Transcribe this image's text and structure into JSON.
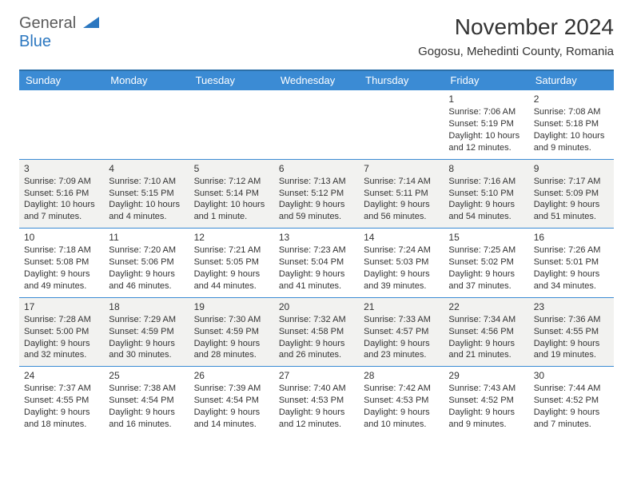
{
  "logo": {
    "part1": "General",
    "part2": "Blue",
    "tri_color": "#2b77c0"
  },
  "title": "November 2024",
  "location": "Gogosu, Mehedinti County, Romania",
  "colors": {
    "header_bg": "#3b8bd4",
    "header_border": "#2b6fa8",
    "header_text": "#ffffff",
    "row_border": "#3b8bd4",
    "shade_bg": "#f2f2f0",
    "body_bg": "#ffffff",
    "text": "#333333"
  },
  "columns": [
    "Sunday",
    "Monday",
    "Tuesday",
    "Wednesday",
    "Thursday",
    "Friday",
    "Saturday"
  ],
  "weeks": [
    {
      "shaded": false,
      "days": [
        null,
        null,
        null,
        null,
        null,
        {
          "n": "1",
          "sr": "7:06 AM",
          "ss": "5:19 PM",
          "dl": "10 hours and 12 minutes."
        },
        {
          "n": "2",
          "sr": "7:08 AM",
          "ss": "5:18 PM",
          "dl": "10 hours and 9 minutes."
        }
      ]
    },
    {
      "shaded": true,
      "days": [
        {
          "n": "3",
          "sr": "7:09 AM",
          "ss": "5:16 PM",
          "dl": "10 hours and 7 minutes."
        },
        {
          "n": "4",
          "sr": "7:10 AM",
          "ss": "5:15 PM",
          "dl": "10 hours and 4 minutes."
        },
        {
          "n": "5",
          "sr": "7:12 AM",
          "ss": "5:14 PM",
          "dl": "10 hours and 1 minute."
        },
        {
          "n": "6",
          "sr": "7:13 AM",
          "ss": "5:12 PM",
          "dl": "9 hours and 59 minutes."
        },
        {
          "n": "7",
          "sr": "7:14 AM",
          "ss": "5:11 PM",
          "dl": "9 hours and 56 minutes."
        },
        {
          "n": "8",
          "sr": "7:16 AM",
          "ss": "5:10 PM",
          "dl": "9 hours and 54 minutes."
        },
        {
          "n": "9",
          "sr": "7:17 AM",
          "ss": "5:09 PM",
          "dl": "9 hours and 51 minutes."
        }
      ]
    },
    {
      "shaded": false,
      "days": [
        {
          "n": "10",
          "sr": "7:18 AM",
          "ss": "5:08 PM",
          "dl": "9 hours and 49 minutes."
        },
        {
          "n": "11",
          "sr": "7:20 AM",
          "ss": "5:06 PM",
          "dl": "9 hours and 46 minutes."
        },
        {
          "n": "12",
          "sr": "7:21 AM",
          "ss": "5:05 PM",
          "dl": "9 hours and 44 minutes."
        },
        {
          "n": "13",
          "sr": "7:23 AM",
          "ss": "5:04 PM",
          "dl": "9 hours and 41 minutes."
        },
        {
          "n": "14",
          "sr": "7:24 AM",
          "ss": "5:03 PM",
          "dl": "9 hours and 39 minutes."
        },
        {
          "n": "15",
          "sr": "7:25 AM",
          "ss": "5:02 PM",
          "dl": "9 hours and 37 minutes."
        },
        {
          "n": "16",
          "sr": "7:26 AM",
          "ss": "5:01 PM",
          "dl": "9 hours and 34 minutes."
        }
      ]
    },
    {
      "shaded": true,
      "days": [
        {
          "n": "17",
          "sr": "7:28 AM",
          "ss": "5:00 PM",
          "dl": "9 hours and 32 minutes."
        },
        {
          "n": "18",
          "sr": "7:29 AM",
          "ss": "4:59 PM",
          "dl": "9 hours and 30 minutes."
        },
        {
          "n": "19",
          "sr": "7:30 AM",
          "ss": "4:59 PM",
          "dl": "9 hours and 28 minutes."
        },
        {
          "n": "20",
          "sr": "7:32 AM",
          "ss": "4:58 PM",
          "dl": "9 hours and 26 minutes."
        },
        {
          "n": "21",
          "sr": "7:33 AM",
          "ss": "4:57 PM",
          "dl": "9 hours and 23 minutes."
        },
        {
          "n": "22",
          "sr": "7:34 AM",
          "ss": "4:56 PM",
          "dl": "9 hours and 21 minutes."
        },
        {
          "n": "23",
          "sr": "7:36 AM",
          "ss": "4:55 PM",
          "dl": "9 hours and 19 minutes."
        }
      ]
    },
    {
      "shaded": false,
      "days": [
        {
          "n": "24",
          "sr": "7:37 AM",
          "ss": "4:55 PM",
          "dl": "9 hours and 18 minutes."
        },
        {
          "n": "25",
          "sr": "7:38 AM",
          "ss": "4:54 PM",
          "dl": "9 hours and 16 minutes."
        },
        {
          "n": "26",
          "sr": "7:39 AM",
          "ss": "4:54 PM",
          "dl": "9 hours and 14 minutes."
        },
        {
          "n": "27",
          "sr": "7:40 AM",
          "ss": "4:53 PM",
          "dl": "9 hours and 12 minutes."
        },
        {
          "n": "28",
          "sr": "7:42 AM",
          "ss": "4:53 PM",
          "dl": "9 hours and 10 minutes."
        },
        {
          "n": "29",
          "sr": "7:43 AM",
          "ss": "4:52 PM",
          "dl": "9 hours and 9 minutes."
        },
        {
          "n": "30",
          "sr": "7:44 AM",
          "ss": "4:52 PM",
          "dl": "9 hours and 7 minutes."
        }
      ]
    }
  ],
  "labels": {
    "sunrise": "Sunrise:",
    "sunset": "Sunset:",
    "daylight": "Daylight:"
  }
}
